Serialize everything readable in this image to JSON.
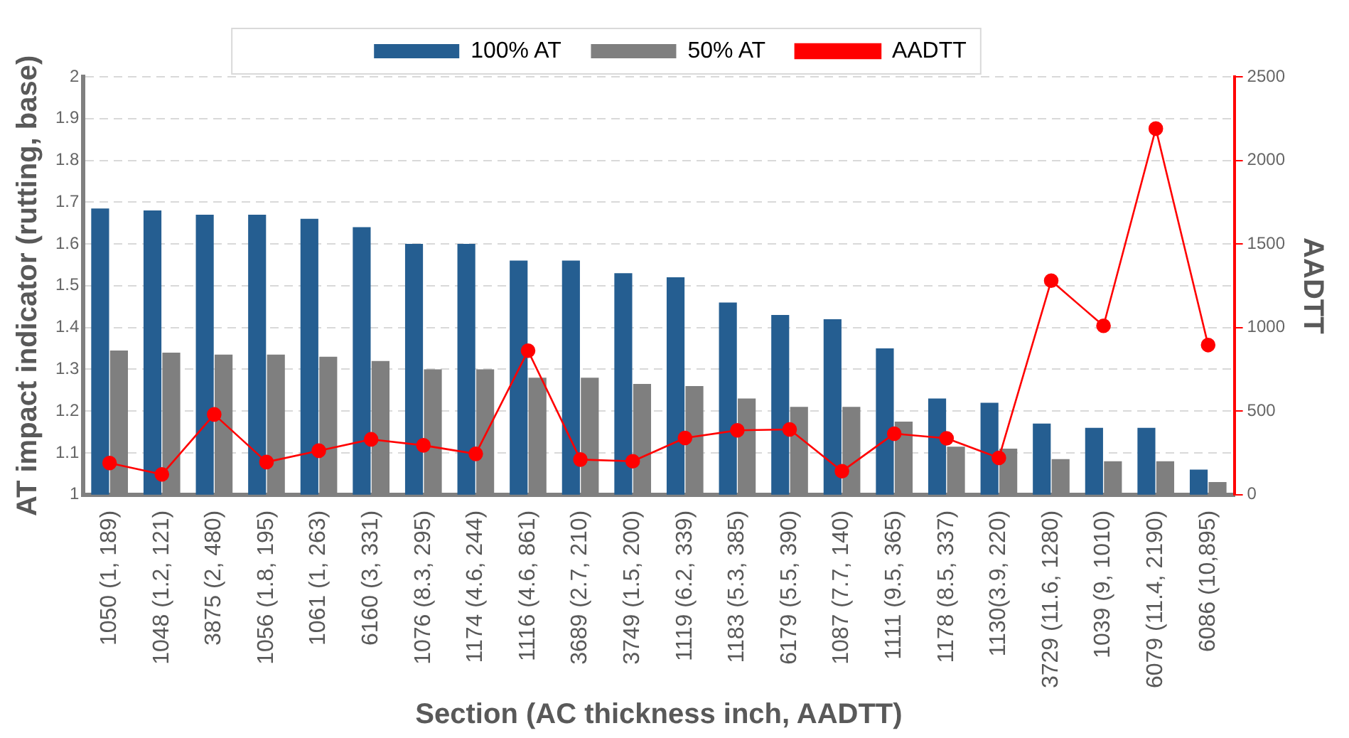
{
  "chart_data": {
    "type": "bar",
    "xlabel": "Section (AC thickness inch, AADTT)",
    "ylabel": "AT impact indicator (rutting, base)",
    "y2label": "AADTT",
    "categories": [
      "1050 (1, 189)",
      "1048 (1.2, 121)",
      "3875 (2, 480)",
      "1056 (1.8, 195)",
      "1061 (1, 263)",
      "6160 (3, 331)",
      "1076 (8.3, 295)",
      "1174 (4.6, 244)",
      "1116 (4.6, 861)",
      "3689 (2.7, 210)",
      "3749 (1.5, 200)",
      "1119 (6.2, 339)",
      "1183 (5.3, 385)",
      "6179 (5.5, 390)",
      "1087 (7.7, 140)",
      "1111 (9.5, 365)",
      "1178 (8.5, 337)",
      "1130(3.9, 220)",
      "3729 (11.6, 1280)",
      "1039 (9, 1010)",
      "6079 (11.4, 2190)",
      "6086 (10,895)"
    ],
    "series": [
      {
        "name": "100% AT",
        "color": "#255e91",
        "values": [
          1.685,
          1.68,
          1.67,
          1.67,
          1.66,
          1.64,
          1.6,
          1.6,
          1.56,
          1.56,
          1.53,
          1.52,
          1.46,
          1.43,
          1.42,
          1.35,
          1.23,
          1.22,
          1.17,
          1.16,
          1.16,
          1.06
        ]
      },
      {
        "name": "50% AT",
        "color": "#7f7f7f",
        "values": [
          1.345,
          1.34,
          1.335,
          1.335,
          1.33,
          1.32,
          1.3,
          1.3,
          1.28,
          1.28,
          1.265,
          1.26,
          1.23,
          1.21,
          1.21,
          1.175,
          1.115,
          1.11,
          1.085,
          1.08,
          1.08,
          1.03
        ]
      },
      {
        "name": "AADTT",
        "type": "line",
        "axis": "y2",
        "color": "#ff0000",
        "values": [
          189,
          121,
          480,
          195,
          263,
          331,
          295,
          244,
          861,
          210,
          200,
          339,
          385,
          390,
          140,
          365,
          337,
          220,
          1280,
          1010,
          2190,
          895
        ]
      }
    ],
    "ylim": [
      1,
      2
    ],
    "yticks": [
      1,
      1.1,
      1.2,
      1.3,
      1.4,
      1.5,
      1.6,
      1.7,
      1.8,
      1.9,
      2
    ],
    "y2lim": [
      0,
      2500
    ],
    "y2ticks": [
      0,
      500,
      1000,
      1500,
      2000,
      2500
    ],
    "grid": "y",
    "legend": "top",
    "marker": "circle",
    "line_style": "solid"
  }
}
